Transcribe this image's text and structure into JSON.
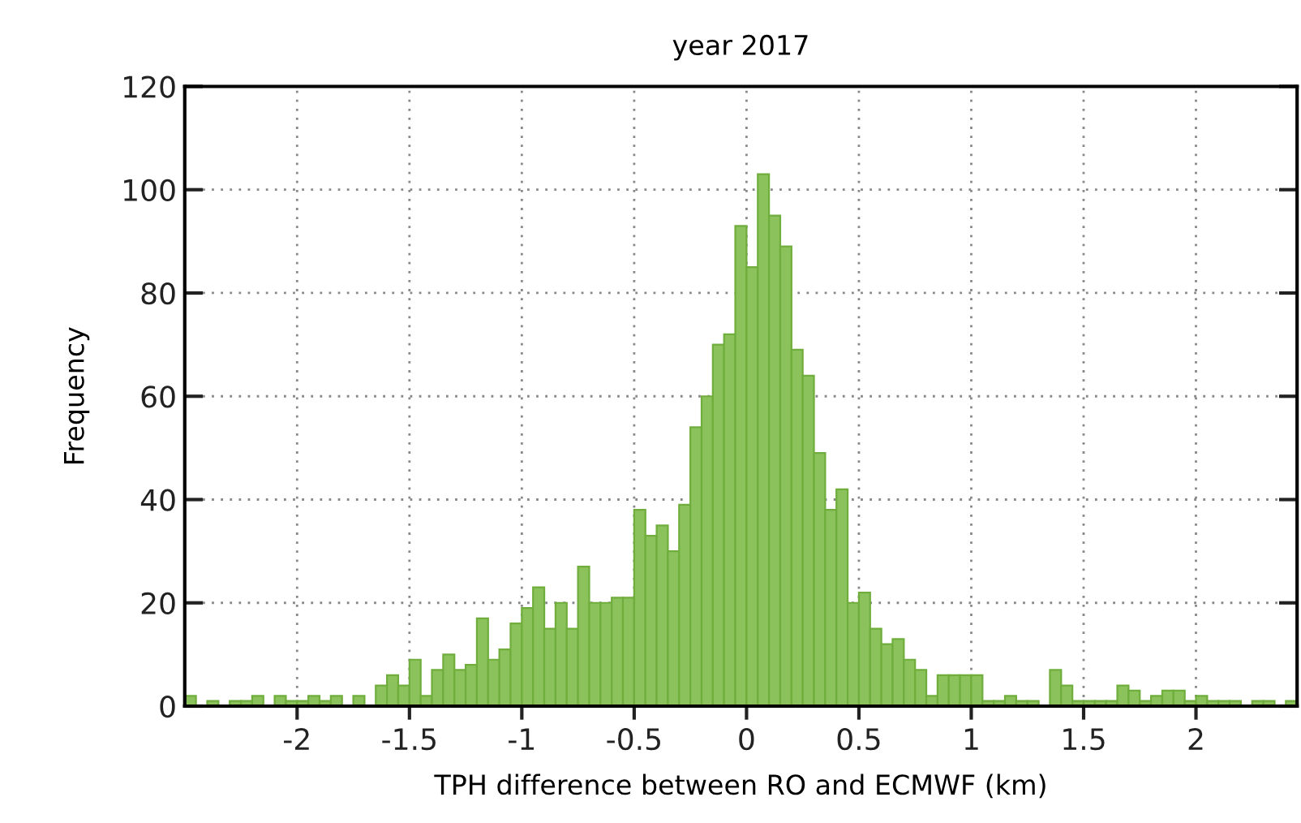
{
  "chart_data": {
    "type": "histogram",
    "title": "year 2017",
    "xlabel": "TPH difference between RO and ECMWF (km)",
    "ylabel": "Frequency",
    "bins": [
      -2.5,
      -2.45,
      -2.4,
      -2.35,
      -2.3,
      -2.25,
      -2.2,
      -2.15,
      -2.1,
      -2.05,
      -2.0,
      -1.95,
      -1.9,
      -1.85,
      -1.8,
      -1.75,
      -1.7,
      -1.65,
      -1.6,
      -1.55,
      -1.5,
      -1.45,
      -1.4,
      -1.35,
      -1.3,
      -1.25,
      -1.2,
      -1.15,
      -1.1,
      -1.05,
      -1.0,
      -0.95,
      -0.9,
      -0.85,
      -0.8,
      -0.75,
      -0.7,
      -0.65,
      -0.6,
      -0.55,
      -0.5,
      -0.45,
      -0.4,
      -0.35,
      -0.3,
      -0.25,
      -0.2,
      -0.15,
      -0.1,
      -0.05,
      0.0,
      0.05,
      0.1,
      0.15,
      0.2,
      0.25,
      0.3,
      0.35,
      0.4,
      0.45,
      0.5,
      0.55,
      0.6,
      0.65,
      0.7,
      0.75,
      0.8,
      0.85,
      0.9,
      0.95,
      1.0,
      1.05,
      1.1,
      1.15,
      1.2,
      1.25,
      1.3,
      1.35,
      1.4,
      1.45,
      1.5,
      1.55,
      1.6,
      1.65,
      1.7,
      1.75,
      1.8,
      1.85,
      1.9,
      1.95,
      2.0,
      2.05,
      2.1,
      2.15,
      2.2,
      2.25,
      2.3,
      2.35,
      2.4,
      2.45
    ],
    "values": [
      2,
      0,
      1,
      0,
      1,
      1,
      2,
      0,
      2,
      1,
      1,
      2,
      1,
      2,
      0,
      2,
      0,
      4,
      6,
      4,
      9,
      2,
      7,
      10,
      7,
      8,
      17,
      9,
      11,
      16,
      19,
      23,
      15,
      20,
      15,
      27,
      20,
      20,
      21,
      21,
      38,
      33,
      35,
      30,
      39,
      54,
      60,
      70,
      72,
      93,
      85,
      103,
      95,
      89,
      69,
      64,
      49,
      38,
      42,
      20,
      22,
      15,
      12,
      13,
      9,
      7,
      2,
      6,
      6,
      6,
      6,
      1,
      1,
      2,
      1,
      1,
      0,
      7,
      4,
      1,
      1,
      1,
      1,
      4,
      3,
      1,
      2,
      3,
      3,
      1,
      2,
      1,
      1,
      1,
      0,
      1,
      1,
      0,
      1
    ],
    "color": "#8cc25c",
    "xlim": [
      -2.5,
      2.45
    ],
    "xticks": [
      -2,
      -1.5,
      -1,
      -0.5,
      0,
      0.5,
      1,
      1.5,
      2
    ],
    "ylim": [
      0,
      120
    ],
    "yticks": [
      0,
      20,
      40,
      60,
      80,
      100,
      120
    ],
    "grid": true
  }
}
